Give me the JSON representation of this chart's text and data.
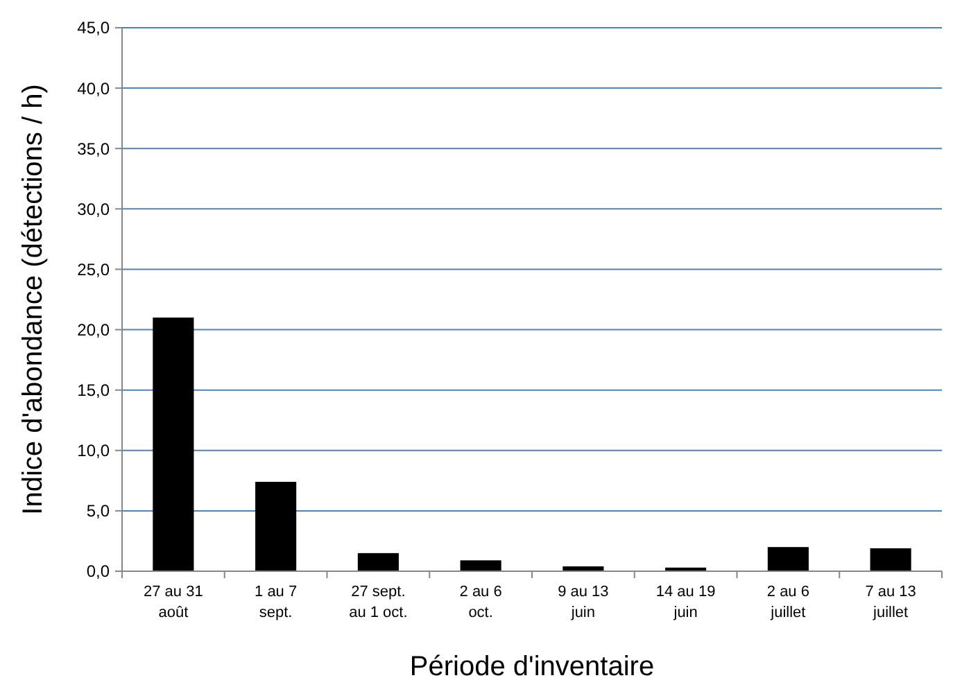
{
  "chart_data": {
    "type": "bar",
    "xlabel": "Période d'inventaire",
    "ylabel": "Indice d'abondance (détections / h)",
    "categories": [
      "27 au 31\naoût",
      "1 au 7\nsept.",
      "27 sept.\nau 1 oct.",
      "2 au 6\noct.",
      "9 au 13\njuin",
      "14 au 19\njuin",
      "2 au 6\njuillet",
      "7 au 13\njuillet"
    ],
    "values": [
      21.0,
      7.4,
      1.5,
      0.9,
      0.4,
      0.3,
      2.0,
      1.9
    ],
    "color": "#000000",
    "ylim": [
      0,
      45
    ],
    "yticks": [
      {
        "value": 0,
        "label": "0,0"
      },
      {
        "value": 5,
        "label": "5,0"
      },
      {
        "value": 10,
        "label": "10,0"
      },
      {
        "value": 15,
        "label": "15,0"
      },
      {
        "value": 20,
        "label": "20,0"
      },
      {
        "value": 25,
        "label": "25,0"
      },
      {
        "value": 30,
        "label": "30,0"
      },
      {
        "value": 35,
        "label": "35,0"
      },
      {
        "value": 40,
        "label": "40,0"
      },
      {
        "value": 45,
        "label": "45,0"
      }
    ],
    "grid": "y"
  }
}
